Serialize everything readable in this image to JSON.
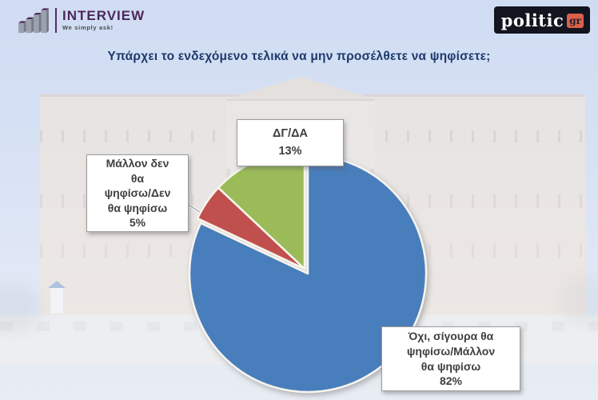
{
  "header": {
    "interview_logo": {
      "name": "INTERVIEW",
      "tagline": "We simply ask!"
    },
    "politic_logo": {
      "text": "politic",
      "suffix": "gr"
    }
  },
  "title": "Υπάρχει το ενδεχόμενο τελικά να μην προσέλθετε να ψηφίσετε;",
  "chart_data": {
    "type": "pie",
    "title": "Υπάρχει το ενδεχόμενο τελικά να μην προσέλθετε να ψηφίσετε;",
    "direction": "clockwise",
    "start_angle_deg": 0,
    "legend": "callout-labels",
    "slices": [
      {
        "label": "Όχι, σίγουρα θα ψηφίσω/Μάλλον θα ψηφίσω",
        "value": 82,
        "color": "#4a7ebc",
        "callout_text": "Όχι, σίγουρα θα\nψηφίσω/Μάλλον\nθα ψηφίσω\n82%"
      },
      {
        "label": "Μάλλον δεν θα ψηφίσω/Δεν θα ψηφίσω",
        "value": 5,
        "color": "#c0504d",
        "callout_text": "Μάλλον δεν\nθα\nψηφίσω/Δεν\nθα ψηφίσω\n5%"
      },
      {
        "label": "ΔΓ/ΔΑ",
        "value": 13,
        "color": "#9bbb59",
        "callout_text": "ΔΓ/ΔΑ\n13%"
      }
    ]
  },
  "colors": {
    "title_text": "#1d3a6c",
    "callout_text": "#3f3f3f",
    "slice_outline": "#f7f5ee",
    "interview_purple": "#4c275a",
    "politic_black": "#12151f",
    "politic_orange": "#dc5f49"
  }
}
